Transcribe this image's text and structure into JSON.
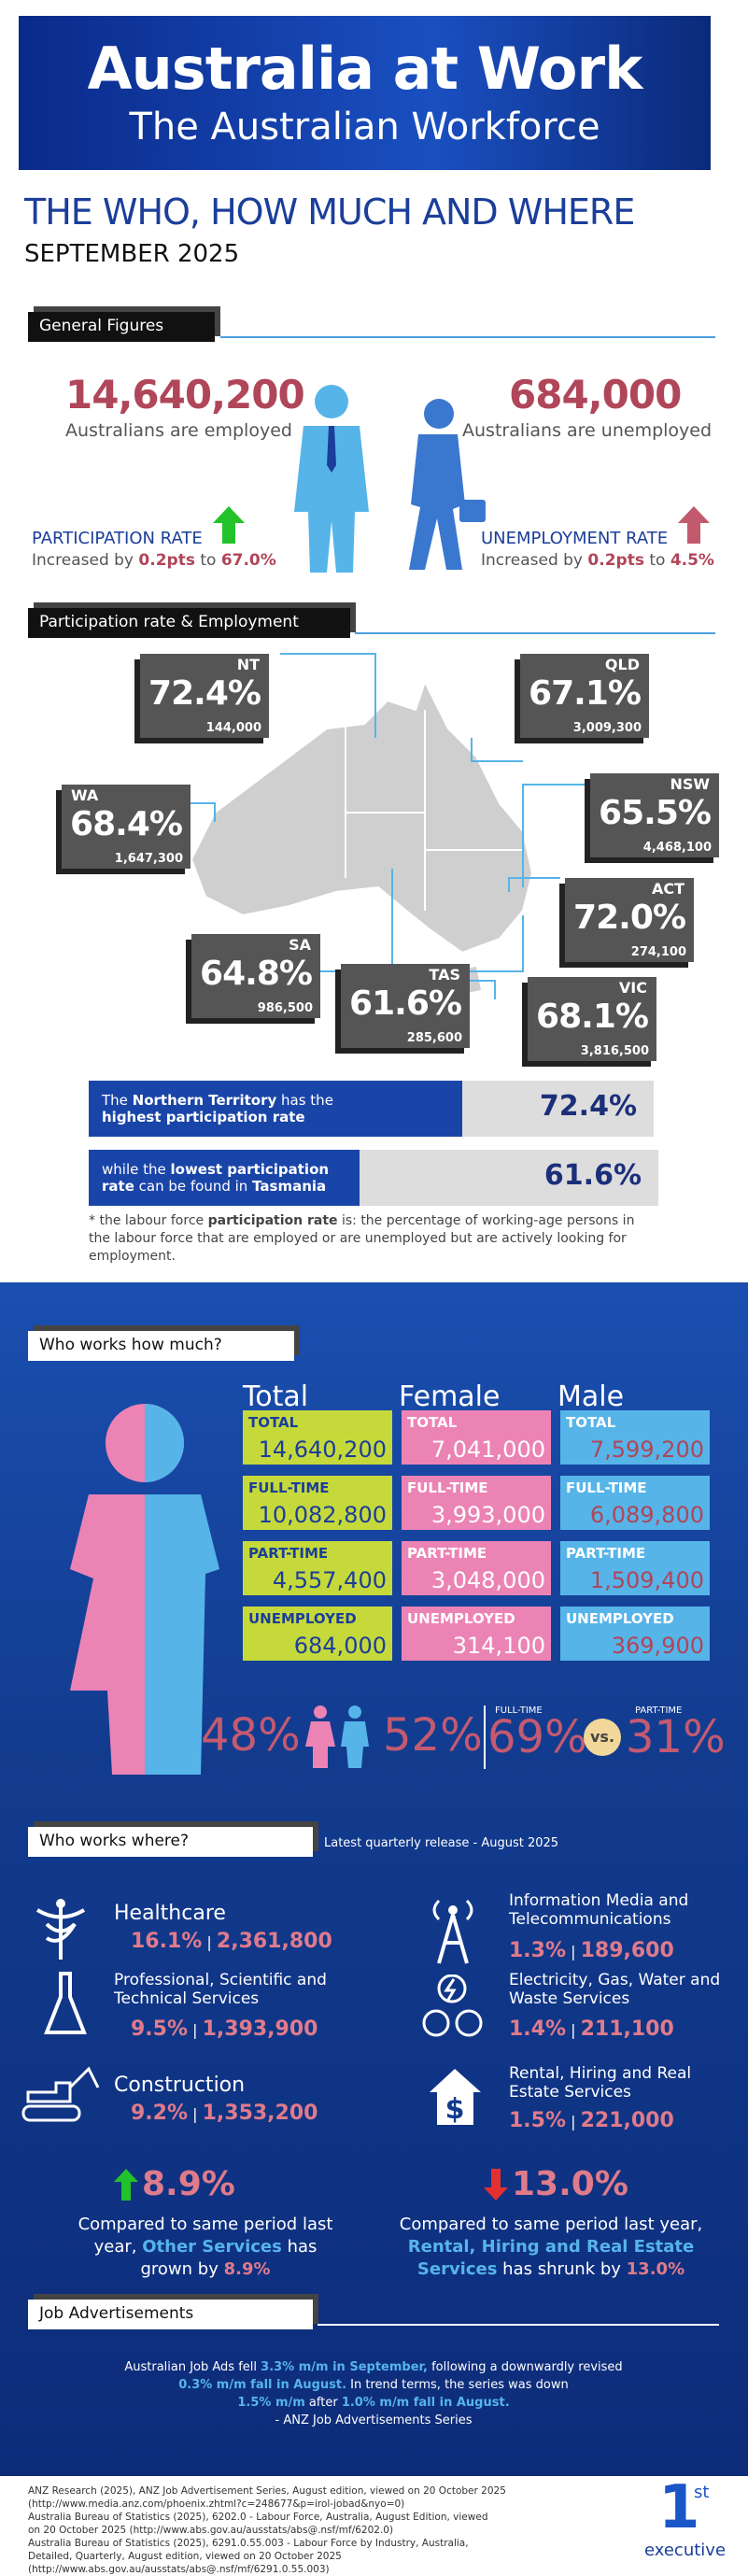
{
  "banner": {
    "title": "Australia at Work",
    "subtitle": "The Australian Workforce"
  },
  "heading": {
    "line1": "THE WHO, HOW MUCH AND WHERE",
    "line2": "SEPTEMBER 2025"
  },
  "general": {
    "section": "General Figures",
    "employed_num": "14,640,200",
    "employed_label": "Australians are employed",
    "unemployed_num": "684,000",
    "unemployed_label": "Australians are unemployed",
    "participation_title": "PARTICIPATION RATE",
    "participation_pre": "Increased by ",
    "participation_pts": "0.2pts",
    "participation_to": " to ",
    "participation_val": "67.0%",
    "unemployment_title": "UNEMPLOYMENT RATE",
    "unemployment_pre": "Increased by ",
    "unemployment_pts": "0.2pts",
    "unemployment_to": " to ",
    "unemployment_val": "4.5%"
  },
  "states": {
    "section": "Participation rate & Employment",
    "NT": {
      "code": "NT",
      "pct": "72.4%",
      "count": "144,000"
    },
    "QLD": {
      "code": "QLD",
      "pct": "67.1%",
      "count": "3,009,300"
    },
    "WA": {
      "code": "WA",
      "pct": "68.4%",
      "count": "1,647,300"
    },
    "NSW": {
      "code": "NSW",
      "pct": "65.5%",
      "count": "4,468,100"
    },
    "ACT": {
      "code": "ACT",
      "pct": "72.0%",
      "count": "274,100"
    },
    "SA": {
      "code": "SA",
      "pct": "64.8%",
      "count": "986,500"
    },
    "TAS": {
      "code": "TAS",
      "pct": "61.6%",
      "count": "285,600"
    },
    "VIC": {
      "code": "VIC",
      "pct": "68.1%",
      "count": "3,816,500"
    }
  },
  "callouts": {
    "high_pre": "The ",
    "high_bold": "Northern Territory",
    "high_mid": " has the ",
    "high_bold2": "highest participation rate",
    "high_val": "72.4%",
    "low_pre": "while the ",
    "low_bold": "lowest participation rate",
    "low_mid": " can be found in ",
    "low_bold2": "Tasmania",
    "low_val": "61.6%",
    "note_pre": "* the labour force ",
    "note_bold": "participation rate",
    "note_rest": " is: the percentage of working-age persons in the labour force that are employed or are unemployed but are actively looking for employment."
  },
  "how_much": {
    "section": "Who works how much?",
    "col_total": "Total",
    "col_female": "Female",
    "col_male": "Male",
    "rows": [
      {
        "k1": "TOTAL",
        "v1": "14,640,200",
        "k2": "TOTAL",
        "v2": "7,041,000",
        "k3": "TOTAL",
        "v3": "7,599,200"
      },
      {
        "k1": "FULL-TIME",
        "v1": "10,082,800",
        "k2": "FULL-TIME",
        "v2": "3,993,000",
        "k3": "FULL-TIME",
        "v3": "6,089,800"
      },
      {
        "k1": "PART-TIME",
        "v1": "4,557,400",
        "k2": "PART-TIME",
        "v2": "3,048,000",
        "k3": "PART-TIME",
        "v3": "1,509,400"
      },
      {
        "k1": "UNEMPLOYED",
        "v1": "684,000",
        "k2": "UNEMPLOYED",
        "v2": "314,100",
        "k3": "UNEMPLOYED",
        "v3": "369,900"
      }
    ],
    "female_pct": "48%",
    "male_pct": "52%",
    "ft_label": "FULL-TIME",
    "pt_label": "PART-TIME",
    "ft_pct": "69%",
    "vs": "vs.",
    "pt_pct": "31%"
  },
  "where": {
    "section": "Who works where?",
    "release": "Latest quarterly release - August 2025",
    "industries": [
      {
        "name": "Healthcare",
        "pct": "16.1%",
        "count": "2,361,800"
      },
      {
        "name": "Information Media and Telecommunications",
        "pct": "1.3%",
        "count": "189,600"
      },
      {
        "name": "Professional, Scientific and Technical Services",
        "pct": "9.5%",
        "count": "1,393,900"
      },
      {
        "name": "Electricity, Gas, Water and Waste Services",
        "pct": "1.4%",
        "count": "211,100"
      },
      {
        "name": "Construction",
        "pct": "9.2%",
        "count": "1,353,200"
      },
      {
        "name": "Rental, Hiring and Real Estate Services",
        "pct": "1.5%",
        "count": "221,000"
      }
    ],
    "grow_val": "8.9%",
    "grow_text1": "Compared to same period last year, ",
    "grow_bold": "Other Services",
    "grow_text2": " has grown by ",
    "grow_val2": "8.9%",
    "shrink_val": "13.0%",
    "shrink_text1": "Compared to same period last year, ",
    "shrink_bold": "Rental, Hiring and Real Estate Services",
    "shrink_text2": " has shrunk by ",
    "shrink_val2": "13.0%"
  },
  "jobs": {
    "section": "Job Advertisements",
    "l1a": "Australian Job Ads fell ",
    "l1b": "3.3% m/m in September,",
    "l1c": " following a downwardly revised",
    "l2a": "0.3% m/m fall in August.",
    "l2b": " In trend terms, the series was down",
    "l3a": "1.5% m/m",
    "l3b": " after ",
    "l3c": "1.0% m/m fall in August.",
    "l4": "- ANZ Job Advertisements Series"
  },
  "footer": {
    "lines": [
      "ANZ Research (2025), ANZ Job Advertisement Series, August edition, viewed on 20 October 2025",
      "(http://www.media.anz.com/phoenix.zhtml?c=248677&p=irol-jobad&nyo=0)",
      "Australia Bureau of Statistics (2025), 6202.0 - Labour Force, Australia, August Edition, viewed",
      "on 20 October  2025 (http://www.abs.gov.au/ausstats/abs@.nsf/mf/6202.0)",
      "Australia Bureau of Statistics (2025), 6291.0.55.003 - Labour Force by Industry, Australia,",
      "Detailed, Quarterly, August edition, viewed on 20 October  2025",
      "(http://www.abs.gov.au/ausstats/abs@.nsf/mf/6291.0.55.003)"
    ],
    "logo_num": "1",
    "logo_sup": "st",
    "logo_word": "executive"
  }
}
